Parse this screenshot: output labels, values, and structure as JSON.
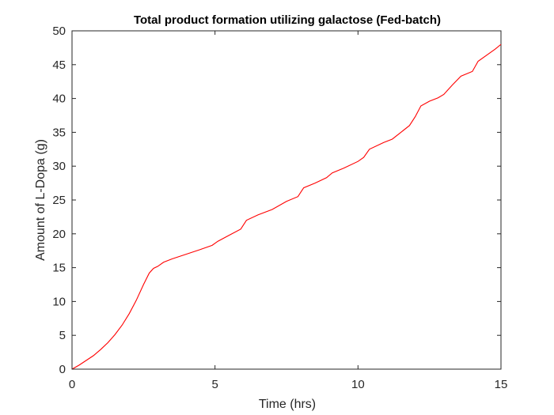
{
  "chart_data": {
    "type": "line",
    "title": "Total product formation utilizing galactose (Fed-batch)",
    "xlabel": "Time (hrs)",
    "ylabel": "Amount of L-Dopa (g)",
    "xlim": [
      0,
      15
    ],
    "ylim": [
      0,
      50
    ],
    "xticks": [
      0,
      5,
      10,
      15
    ],
    "yticks": [
      0,
      5,
      10,
      15,
      20,
      25,
      30,
      35,
      40,
      45,
      50
    ],
    "grid": false,
    "line_color": "#ff0000",
    "series": [
      {
        "x": [
          0,
          0.25,
          0.5,
          0.75,
          1.0,
          1.25,
          1.5,
          1.75,
          2.0,
          2.25,
          2.5,
          2.7,
          2.85,
          3.0,
          3.2,
          3.5,
          4.0,
          4.5,
          4.9,
          5.1,
          5.5,
          5.9,
          6.1,
          6.5,
          7.0,
          7.5,
          7.9,
          8.1,
          8.5,
          8.9,
          9.1,
          9.5,
          10.0,
          10.2,
          10.4,
          10.9,
          11.2,
          11.5,
          11.8,
          12.0,
          12.2,
          12.5,
          12.8,
          13.0,
          13.3,
          13.6,
          14.0,
          14.2,
          14.5,
          14.8,
          15.0
        ],
        "y": [
          0,
          0.6,
          1.3,
          2.0,
          2.9,
          3.9,
          5.1,
          6.5,
          8.2,
          10.2,
          12.5,
          14.2,
          14.9,
          15.2,
          15.8,
          16.3,
          17.0,
          17.7,
          18.3,
          18.9,
          19.8,
          20.7,
          22.0,
          22.8,
          23.6,
          24.8,
          25.5,
          26.8,
          27.5,
          28.3,
          29.0,
          29.7,
          30.7,
          31.3,
          32.5,
          33.5,
          34.0,
          35.0,
          36.0,
          37.3,
          38.9,
          39.6,
          40.1,
          40.6,
          42.0,
          43.3,
          44.0,
          45.5,
          46.4,
          47.3,
          48.0
        ]
      }
    ]
  }
}
